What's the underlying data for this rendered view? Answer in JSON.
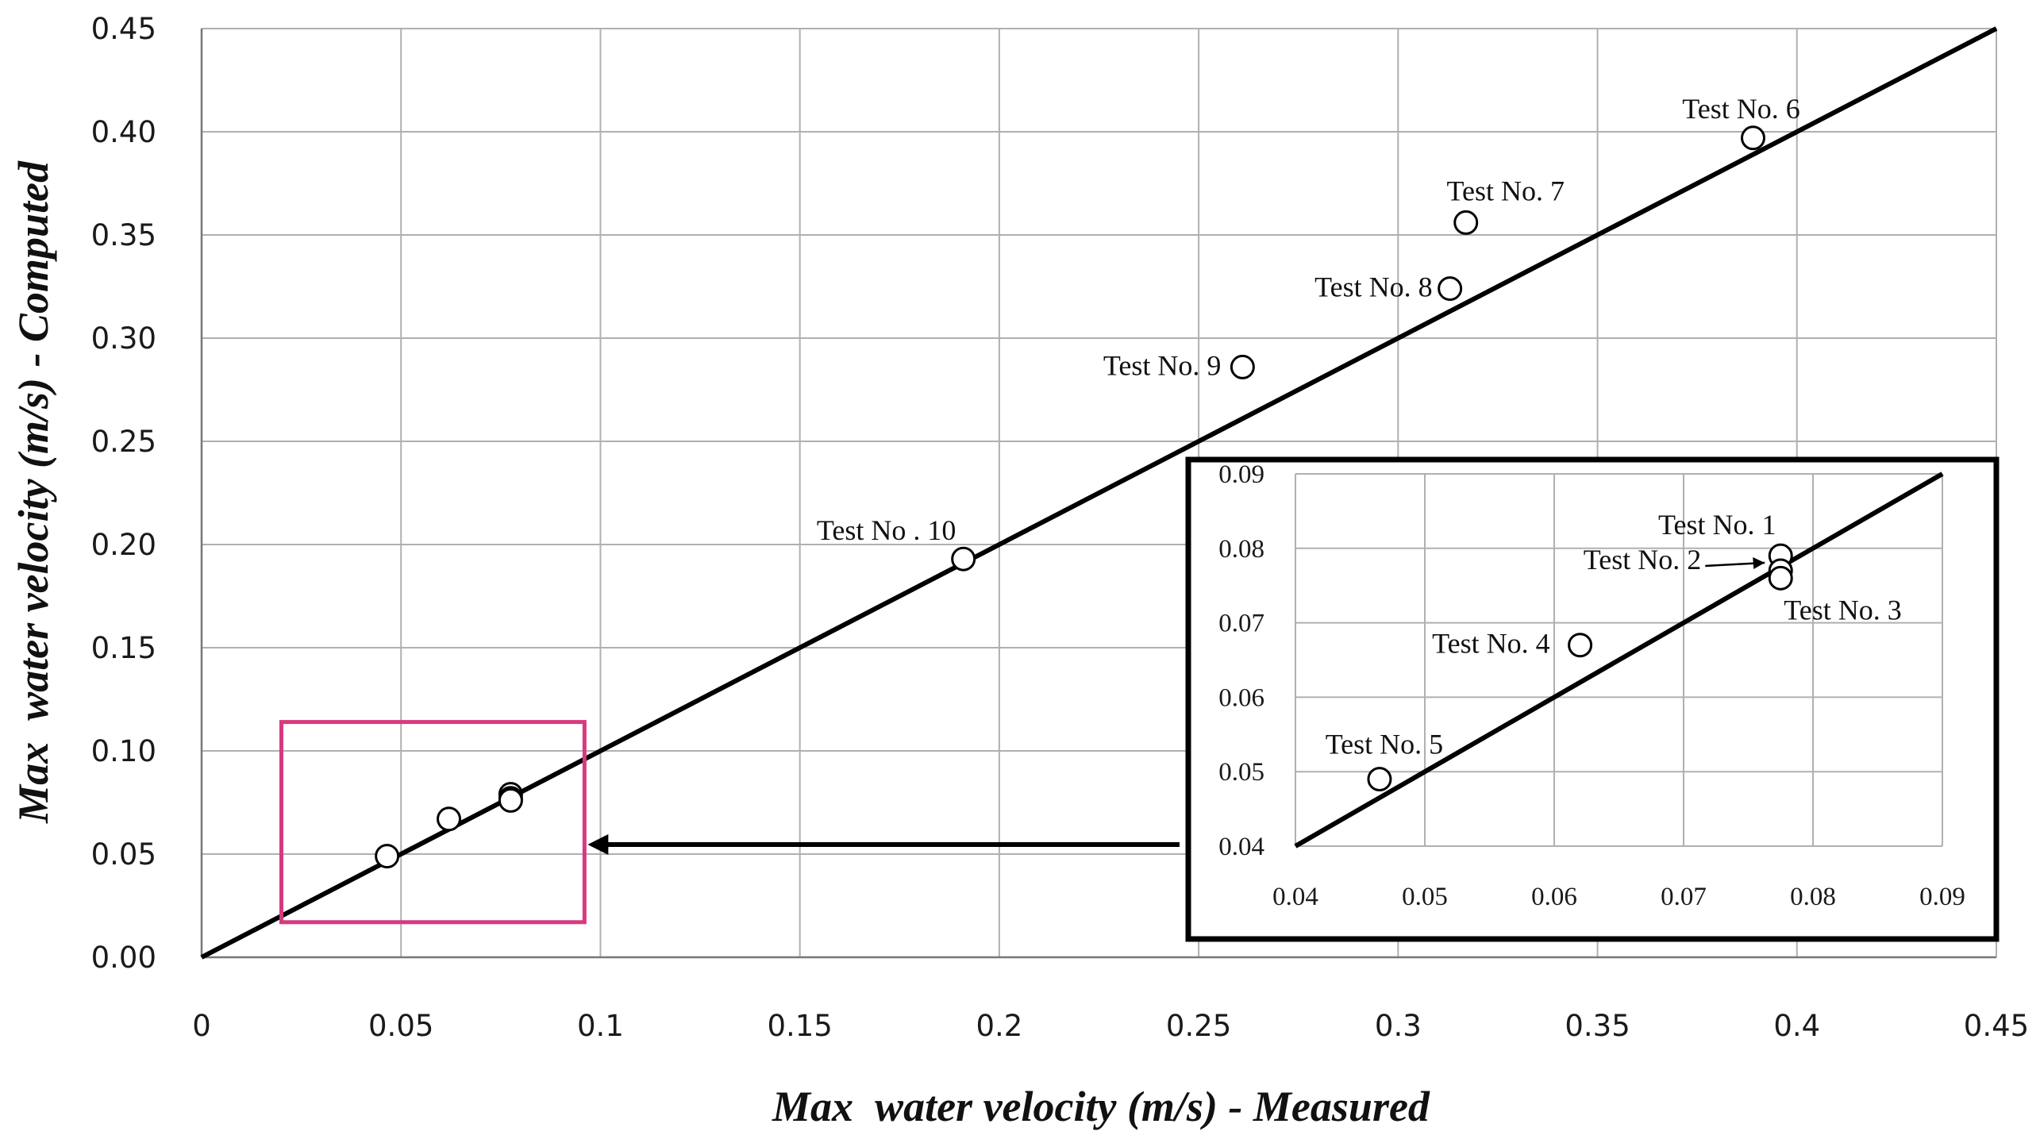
{
  "chart_data": {
    "type": "scatter",
    "xlabel": "Max  water velocity (m/s) - Measured",
    "ylabel": "Max  water velocity (m/s) - Computed",
    "xlim": [
      0,
      0.45
    ],
    "ylim": [
      0,
      0.45
    ],
    "x_ticks": [
      "0",
      "0.05",
      "0.1",
      "0.15",
      "0.2",
      "0.25",
      "0.3",
      "0.35",
      "0.4",
      "0.45"
    ],
    "y_ticks": [
      "0.00",
      "0.05",
      "0.10",
      "0.15",
      "0.20",
      "0.25",
      "0.30",
      "0.35",
      "0.40",
      "0.45"
    ],
    "reference_line": {
      "name": "1:1 line",
      "x": [
        0,
        0.45
      ],
      "y": [
        0,
        0.45
      ]
    },
    "points": [
      {
        "label": "Test No. 1",
        "x": 0.0775,
        "y": 0.079
      },
      {
        "label": "Test No. 2",
        "x": 0.0775,
        "y": 0.077
      },
      {
        "label": "Test No. 3",
        "x": 0.0775,
        "y": 0.076
      },
      {
        "label": "Test No. 4",
        "x": 0.062,
        "y": 0.067
      },
      {
        "label": "Test No. 5",
        "x": 0.0465,
        "y": 0.049
      },
      {
        "label": "Test No. 6",
        "x": 0.389,
        "y": 0.397
      },
      {
        "label": "Test No. 7",
        "x": 0.317,
        "y": 0.356
      },
      {
        "label": "Test No. 8",
        "x": 0.313,
        "y": 0.324
      },
      {
        "label": "Test No. 9",
        "x": 0.261,
        "y": 0.286
      },
      {
        "label": "Test No . 10",
        "x": 0.191,
        "y": 0.193
      }
    ],
    "inset": {
      "xlim": [
        0.04,
        0.09
      ],
      "ylim": [
        0.04,
        0.09
      ],
      "x_ticks": [
        "0.04",
        "0.05",
        "0.06",
        "0.07",
        "0.08",
        "0.09"
      ],
      "y_ticks": [
        "0.04",
        "0.05",
        "0.06",
        "0.07",
        "0.08",
        "0.09"
      ],
      "points": [
        {
          "label": "Test No. 1",
          "x": 0.0775,
          "y": 0.079
        },
        {
          "label": "Test No. 2",
          "x": 0.0775,
          "y": 0.077
        },
        {
          "label": "Test No. 3",
          "x": 0.0775,
          "y": 0.076
        },
        {
          "label": "Test No. 4",
          "x": 0.062,
          "y": 0.067
        },
        {
          "label": "Test No. 5",
          "x": 0.0465,
          "y": 0.049
        }
      ],
      "zoom_region": {
        "xlim": [
          0.02,
          0.096
        ],
        "ylim": [
          0.017,
          0.114
        ]
      }
    },
    "colors": {
      "zoom_box": "#d63a7e",
      "line": "#000000",
      "marker_fill": "#ffffff"
    }
  }
}
